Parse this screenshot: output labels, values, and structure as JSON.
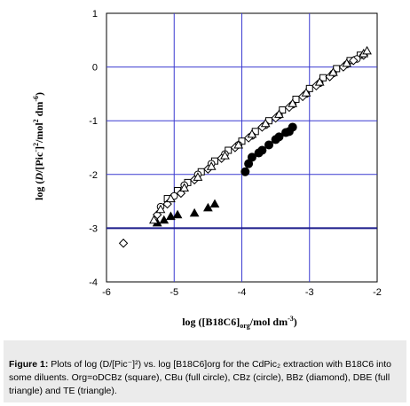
{
  "chart_data": {
    "type": "scatter",
    "title": "",
    "xlabel": "log ([B18C6]org/mol dm-3)",
    "ylabel": "log (D/[Pic-]2/mol2 dm-6)",
    "xlim": [
      -6,
      -2
    ],
    "ylim": [
      -4,
      1
    ],
    "xticks": [
      "-6",
      "-5",
      "-4",
      "-3",
      "-2"
    ],
    "yticks": [
      "-4",
      "-3",
      "-2",
      "-1",
      "0",
      "1"
    ],
    "grid": true,
    "reference_line_y": -3,
    "series": [
      {
        "name": "square",
        "marker": "square-open",
        "color": "#000000",
        "points": [
          [
            -5.1,
            -2.45
          ],
          [
            -4.95,
            -2.3
          ],
          [
            -4.8,
            -2.15
          ],
          [
            -4.6,
            -1.95
          ],
          [
            -4.4,
            -1.75
          ],
          [
            -4.2,
            -1.55
          ],
          [
            -4.0,
            -1.38
          ],
          [
            -3.8,
            -1.2
          ],
          [
            -3.6,
            -1.0
          ],
          [
            -3.4,
            -0.8
          ],
          [
            -3.2,
            -0.6
          ],
          [
            -3.0,
            -0.4
          ],
          [
            -2.8,
            -0.2
          ],
          [
            -2.6,
            -0.03
          ],
          [
            -2.4,
            0.12
          ],
          [
            -2.25,
            0.22
          ]
        ]
      },
      {
        "name": "full circle",
        "marker": "circle-filled",
        "color": "#000000",
        "points": [
          [
            -3.95,
            -1.95
          ],
          [
            -3.9,
            -1.8
          ],
          [
            -3.85,
            -1.68
          ],
          [
            -3.75,
            -1.6
          ],
          [
            -3.7,
            -1.55
          ],
          [
            -3.6,
            -1.45
          ],
          [
            -3.5,
            -1.35
          ],
          [
            -3.45,
            -1.3
          ],
          [
            -3.35,
            -1.22
          ],
          [
            -3.3,
            -1.2
          ],
          [
            -3.25,
            -1.12
          ]
        ]
      },
      {
        "name": "circle",
        "marker": "circle-open",
        "color": "#000000",
        "points": [
          [
            -5.2,
            -2.6
          ],
          [
            -5.0,
            -2.4
          ],
          [
            -4.85,
            -2.2
          ],
          [
            -4.65,
            -2.0
          ],
          [
            -4.45,
            -1.8
          ],
          [
            -4.25,
            -1.62
          ],
          [
            -4.05,
            -1.45
          ],
          [
            -3.85,
            -1.28
          ],
          [
            -3.65,
            -1.08
          ],
          [
            -3.45,
            -0.9
          ],
          [
            -3.25,
            -0.7
          ],
          [
            -3.05,
            -0.5
          ],
          [
            -2.85,
            -0.3
          ],
          [
            -2.65,
            -0.12
          ],
          [
            -2.45,
            0.05
          ],
          [
            -2.3,
            0.15
          ]
        ]
      },
      {
        "name": "diamond",
        "marker": "diamond-open",
        "color": "#000000",
        "points": [
          [
            -5.75,
            -3.28
          ],
          [
            -5.25,
            -2.75
          ],
          [
            -5.1,
            -2.55
          ],
          [
            -4.9,
            -2.35
          ],
          [
            -4.7,
            -2.1
          ],
          [
            -4.5,
            -1.9
          ],
          [
            -4.3,
            -1.7
          ],
          [
            -4.1,
            -1.5
          ],
          [
            -3.9,
            -1.32
          ],
          [
            -3.7,
            -1.12
          ],
          [
            -3.5,
            -0.95
          ],
          [
            -3.3,
            -0.75
          ],
          [
            -3.1,
            -0.55
          ],
          [
            -2.9,
            -0.35
          ],
          [
            -2.7,
            -0.18
          ],
          [
            -2.5,
            0.0
          ],
          [
            -2.35,
            0.12
          ],
          [
            -2.2,
            0.22
          ]
        ]
      },
      {
        "name": "full triangle",
        "marker": "triangle-filled",
        "color": "#000000",
        "points": [
          [
            -5.25,
            -2.9
          ],
          [
            -5.15,
            -2.85
          ],
          [
            -5.05,
            -2.78
          ],
          [
            -4.95,
            -2.75
          ],
          [
            -4.7,
            -2.72
          ],
          [
            -4.5,
            -2.62
          ],
          [
            -4.4,
            -2.55
          ]
        ]
      },
      {
        "name": "triangle",
        "marker": "triangle-open",
        "color": "#000000",
        "points": [
          [
            -5.3,
            -2.85
          ],
          [
            -5.2,
            -2.65
          ],
          [
            -5.05,
            -2.45
          ],
          [
            -4.85,
            -2.25
          ],
          [
            -4.65,
            -2.05
          ],
          [
            -4.45,
            -1.85
          ],
          [
            -4.25,
            -1.65
          ],
          [
            -4.05,
            -1.45
          ],
          [
            -3.85,
            -1.25
          ],
          [
            -3.65,
            -1.05
          ],
          [
            -3.45,
            -0.88
          ],
          [
            -3.25,
            -0.68
          ],
          [
            -3.05,
            -0.48
          ],
          [
            -2.85,
            -0.28
          ],
          [
            -2.65,
            -0.1
          ],
          [
            -2.45,
            0.07
          ],
          [
            -2.2,
            0.25
          ],
          [
            -2.15,
            0.3
          ]
        ]
      }
    ]
  },
  "caption": {
    "label": "Figure 1:",
    "text": "Plots of log (D/[Pic⁻]²) vs. log [B18C6]org for the CdPic₂ extraction with B18C6 into some diluents. Org=oDCBz (square), CBu (full circle), CBz (circle), BBz (diamond), DBE (full triangle) and TE (triangle)."
  }
}
